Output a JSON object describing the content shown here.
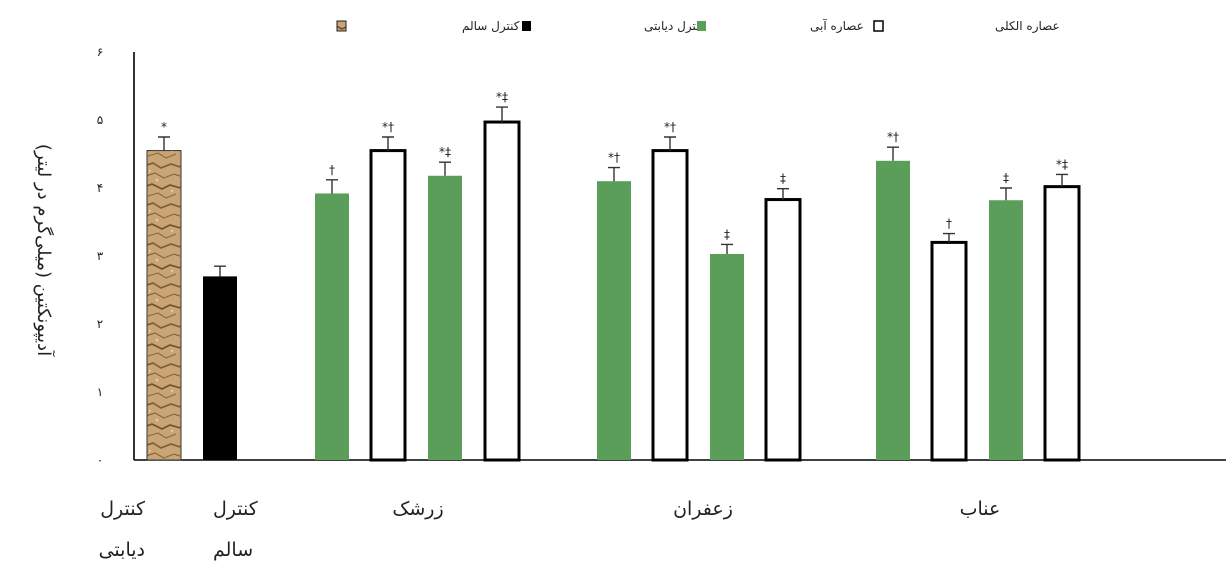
{
  "chart_data": {
    "type": "bar",
    "ylabel": "آدیپونکتین (میلی‌گرم در لیتر)",
    "ylim": [
      0,
      6
    ],
    "yticks": [
      "۰",
      "۱",
      "۲",
      "۳",
      "۴",
      "۵",
      "۶"
    ],
    "grid": false,
    "legend_position": "top",
    "legend": [
      {
        "label": "کنترل سالم",
        "fill": "texture",
        "color": "#c8a070"
      },
      {
        "label": "کنترل دیابتی",
        "fill": "solid",
        "color": "#000000"
      },
      {
        "label": "عصاره آبی",
        "fill": "solid",
        "color": "#5a9e5a"
      },
      {
        "label": "عصاره الکلی",
        "fill": "outline",
        "color": "#ffffff"
      }
    ],
    "categories": [
      {
        "label": "کنترل سالم",
        "label_line1": "کنترل",
        "label_line2": "سالم"
      },
      {
        "label": "کنترل دیابتی",
        "label_line1": "کنترل",
        "label_line2": "دیابتی"
      },
      {
        "label": "زرشک"
      },
      {
        "label": "زعفران"
      },
      {
        "label": "عناب"
      }
    ],
    "bars": [
      {
        "category": "کنترل سالم",
        "series": "کنترل سالم",
        "value": 4.55,
        "error": 0.2,
        "mark": "*"
      },
      {
        "category": "کنترل دیابتی",
        "series": "کنترل دیابتی",
        "value": 2.7,
        "error": 0.15,
        "mark": ""
      },
      {
        "category": "زرشک",
        "series": "عصاره آبی",
        "value": 3.92,
        "error": 0.2,
        "mark": "†"
      },
      {
        "category": "زرشک",
        "series": "عصاره الکلی",
        "value": 4.55,
        "error": 0.2,
        "mark": "*†"
      },
      {
        "category": "زرشک",
        "series": "عصاره آبی",
        "value": 4.18,
        "error": 0.2,
        "mark": "*‡"
      },
      {
        "category": "زرشک",
        "series": "عصاره الکلی",
        "value": 4.97,
        "error": 0.22,
        "mark": "*‡"
      },
      {
        "category": "زعفران",
        "series": "عصاره آبی",
        "value": 4.1,
        "error": 0.2,
        "mark": "*†"
      },
      {
        "category": "زعفران",
        "series": "عصاره الکلی",
        "value": 4.55,
        "error": 0.2,
        "mark": "*†"
      },
      {
        "category": "زعفران",
        "series": "عصاره آبی",
        "value": 3.03,
        "error": 0.14,
        "mark": "‡"
      },
      {
        "category": "زعفران",
        "series": "عصاره الکلی",
        "value": 3.83,
        "error": 0.16,
        "mark": "‡"
      },
      {
        "category": "عناب",
        "series": "عصاره آبی",
        "value": 4.4,
        "error": 0.2,
        "mark": "*†"
      },
      {
        "category": "عناب",
        "series": "عصاره الکلی",
        "value": 3.2,
        "error": 0.13,
        "mark": "†"
      },
      {
        "category": "عناب",
        "series": "عصاره آبی",
        "value": 3.82,
        "error": 0.18,
        "mark": "‡"
      },
      {
        "category": "عناب",
        "series": "عصاره الکلی",
        "value": 4.02,
        "error": 0.18,
        "mark": "*‡"
      }
    ]
  }
}
